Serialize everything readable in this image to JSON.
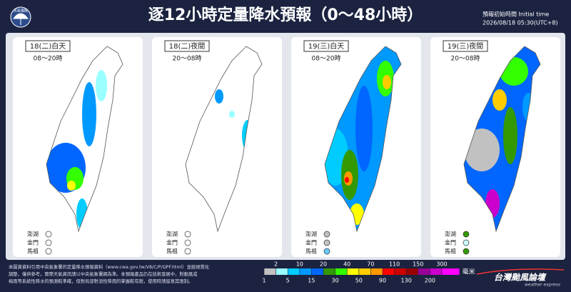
{
  "header": {
    "logo": "天氣風險",
    "title": "逐12小時定量降水預報（0～48小時）",
    "init_label": "預報初始時間 Initial time",
    "init_time": "2026/08/18  05:30(UTC+8)"
  },
  "panels": [
    {
      "label": "18(二)白天",
      "hours": "08～20時",
      "islands": [
        {
          "name": "澎湖",
          "color": "#ffffff"
        },
        {
          "name": "金門",
          "color": "#ffffff"
        },
        {
          "name": "馬祖",
          "color": "#ffffff"
        }
      ]
    },
    {
      "label": "18(二)夜間",
      "hours": "20～08時",
      "islands": [
        {
          "name": "澎湖",
          "color": "#ffffff"
        },
        {
          "name": "金門",
          "color": "#ffffff"
        },
        {
          "name": "馬祖",
          "color": "#ffffff"
        }
      ]
    },
    {
      "label": "19(三)白天",
      "hours": "08～20時",
      "islands": [
        {
          "name": "澎湖",
          "color": "#c1c1c1"
        },
        {
          "name": "金門",
          "color": "#c1c1c1"
        },
        {
          "name": "馬祖",
          "color": "#66ccff"
        }
      ]
    },
    {
      "label": "19(三)夜間",
      "hours": "20～08時",
      "islands": [
        {
          "name": "澎湖",
          "color": "#339900"
        },
        {
          "name": "金門",
          "color": "#ccffff"
        },
        {
          "name": "馬祖",
          "color": "#339900"
        }
      ]
    }
  ],
  "legend": {
    "thresholds": [
      1,
      2,
      5,
      10,
      15,
      20,
      30,
      40,
      50,
      70,
      90,
      110,
      130,
      150,
      200,
      300
    ],
    "colors": [
      "#c1c1c1",
      "#99ffff",
      "#00ccff",
      "#0099ff",
      "#0066ff",
      "#339900",
      "#33ff00",
      "#ffff00",
      "#ffcc00",
      "#ff9900",
      "#ff0000",
      "#cc0000",
      "#990000",
      "#990099",
      "#cc00cc",
      "#ff00ff"
    ],
    "unit": "毫米"
  },
  "footer": {
    "lines": [
      "本圖資資料引用中央氣象署的定量降水預報資料（www.cwa.gov.tw/V8/C/P/QPF.html）並經視覺化",
      "調整，僅供參考。實際天氣資訊請以中央氣象署網為準。本預報產品仍在技術發展中，對颱風或",
      "梅雨等系統性降水的預測較準確，但對局部對流性降雨的掌握較有限，使用時請留意其限制。"
    ],
    "brand": "台灣颱風論壇",
    "brand_sub": "weather express"
  }
}
